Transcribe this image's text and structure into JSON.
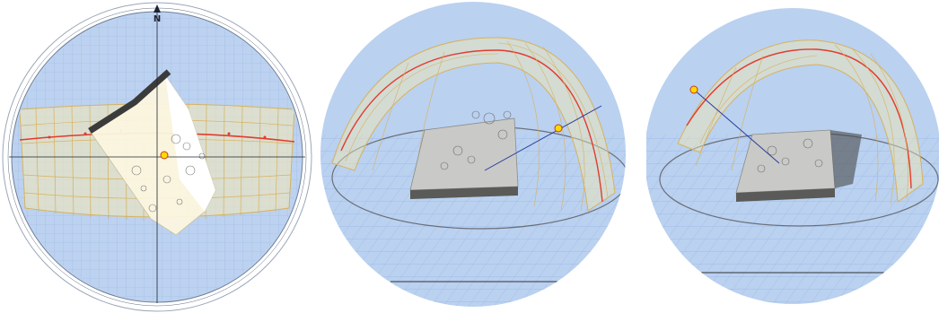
{
  "panels": [
    {
      "name": "top-view-sunpath",
      "compass": {
        "north_label": "N"
      }
    },
    {
      "name": "perspective-view-1"
    },
    {
      "name": "perspective-view-2"
    }
  ],
  "colors": {
    "sky": "#b7cfee",
    "grid": "#8eaee0",
    "dome_fill": "#f2e6b0",
    "dome_line": "#d8b25c",
    "sun_path_red": "#e23b2e",
    "sun_ray_blue": "#2a3c9c",
    "sun_marker": "#ffd900",
    "terrain": "#c9c9c7",
    "building": "#3b3b3b"
  }
}
